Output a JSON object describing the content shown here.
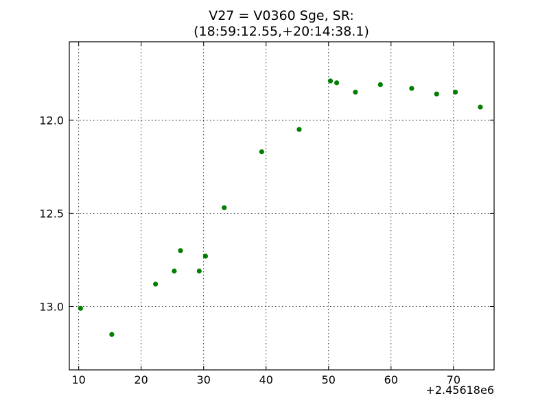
{
  "chart_data": {
    "type": "scatter",
    "title": "V27 = V0360 Sge, SR:",
    "subtitle": "(18:59:12.55,+20:14:38.1)",
    "xlabel": "",
    "ylabel": "",
    "x_offset_label": "+2.45618e6",
    "xlim": [
      8.5,
      76.5
    ],
    "ylim": [
      13.34,
      11.58
    ],
    "y_inverted": true,
    "grid": true,
    "marker_color": "#007f00",
    "x_ticks": [
      10,
      20,
      30,
      40,
      50,
      60,
      70
    ],
    "x_tick_labels": [
      "10",
      "20",
      "30",
      "40",
      "50",
      "60",
      "70"
    ],
    "y_ticks": [
      12.0,
      12.5,
      13.0
    ],
    "y_tick_labels": [
      "12.0",
      "12.5",
      "13.0"
    ],
    "series": [
      {
        "x": [
          10.3,
          15.3,
          22.3,
          25.3,
          26.3,
          29.3,
          30.3,
          33.3,
          39.3,
          45.3,
          50.3,
          51.3,
          54.3,
          58.3,
          63.3,
          67.3,
          70.3,
          74.3
        ],
        "y": [
          13.01,
          13.15,
          12.88,
          12.81,
          12.7,
          12.81,
          12.73,
          12.47,
          12.17,
          12.05,
          11.79,
          11.8,
          11.85,
          11.81,
          11.83,
          11.86,
          11.85,
          11.93
        ]
      }
    ]
  }
}
